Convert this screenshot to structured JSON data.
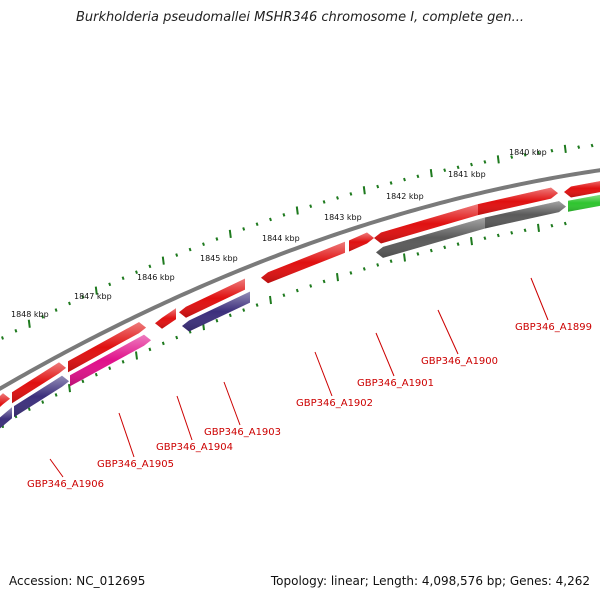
{
  "title": "Burkholderia pseudomallei MSHR346 chromosome I, complete gen...",
  "footer": {
    "accession": "Accession: NC_012695",
    "summary": "Topology: linear; Length: 4,098,576 bp; Genes: 4,262"
  },
  "colors": {
    "backbone": "#7a7a7a",
    "tick": "#1e7a1e",
    "gene_red": "#e01010",
    "gene_gray": "#5a5a5a",
    "gene_purple": "#3c2f7c",
    "gene_pink": "#e0108a",
    "gene_green": "#2ec52e",
    "label": "#cc0000"
  },
  "scale_labels": [
    "1840 kbp",
    "1841 kbp",
    "1842 kbp",
    "1843 kbp",
    "1844 kbp",
    "1845 kbp",
    "1846 kbp",
    "1847 kbp",
    "1848 kbp"
  ],
  "locus_labels": [
    "GBP346_A1899",
    "GBP346_A1900",
    "GBP346_A1901",
    "GBP346_A1902",
    "GBP346_A1903",
    "GBP346_A1904",
    "GBP346_A1905",
    "GBP346_A1906"
  ]
}
